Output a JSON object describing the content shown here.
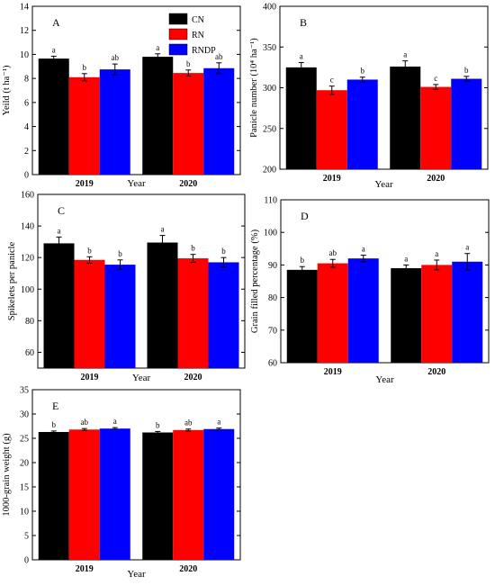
{
  "chart_data": [
    {
      "type": "bar",
      "panel_label": "A",
      "categories": [
        "2019",
        "2020"
      ],
      "xlabel": "Year",
      "ylabel": "Yeild (t ha⁻¹)",
      "ylim": [
        0,
        14
      ],
      "yticks": [
        0,
        2,
        4,
        6,
        8,
        10,
        12,
        14
      ],
      "series": [
        {
          "name": "CN",
          "values": [
            9.65,
            9.8
          ],
          "errors": [
            0.2,
            0.25
          ],
          "letters": [
            "a",
            "a"
          ]
        },
        {
          "name": "RN",
          "values": [
            8.1,
            8.45
          ],
          "errors": [
            0.3,
            0.25
          ],
          "letters": [
            "b",
            "b"
          ]
        },
        {
          "name": "RNDP",
          "values": [
            8.75,
            8.85
          ],
          "errors": [
            0.45,
            0.45
          ],
          "letters": [
            "ab",
            "ab"
          ]
        }
      ],
      "legend": "top-center"
    },
    {
      "type": "bar",
      "panel_label": "B",
      "categories": [
        "2019",
        "2020"
      ],
      "xlabel": "Year",
      "ylabel": "Panicle number (10⁴ ha⁻¹)",
      "ylim": [
        200,
        400
      ],
      "yticks": [
        200,
        250,
        300,
        350,
        400
      ],
      "series": [
        {
          "name": "CN",
          "values": [
            325,
            326
          ],
          "errors": [
            6,
            7
          ],
          "letters": [
            "a",
            "a"
          ]
        },
        {
          "name": "RN",
          "values": [
            297,
            301
          ],
          "errors": [
            5,
            3
          ],
          "letters": [
            "c",
            "c"
          ]
        },
        {
          "name": "RNDP",
          "values": [
            310,
            311
          ],
          "errors": [
            3,
            3
          ],
          "letters": [
            "b",
            "b"
          ]
        }
      ]
    },
    {
      "type": "bar",
      "panel_label": "C",
      "categories": [
        "2019",
        "2020"
      ],
      "xlabel": "Year",
      "ylabel": "Spikelets per panicle",
      "ylim": [
        50,
        160
      ],
      "yticks": [
        60,
        80,
        100,
        120,
        140,
        160
      ],
      "series": [
        {
          "name": "CN",
          "values": [
            129,
            129.5
          ],
          "errors": [
            4,
            4.5
          ],
          "letters": [
            "a",
            "a"
          ]
        },
        {
          "name": "RN",
          "values": [
            118.5,
            119.5
          ],
          "errors": [
            2,
            2.5
          ],
          "letters": [
            "b",
            "b"
          ]
        },
        {
          "name": "RNDP",
          "values": [
            115.5,
            117
          ],
          "errors": [
            3,
            3
          ],
          "letters": [
            "b",
            "b"
          ]
        }
      ]
    },
    {
      "type": "bar",
      "panel_label": "D",
      "categories": [
        "2019",
        "2020"
      ],
      "xlabel": "Year",
      "ylabel": "Grain filled percentage (%)",
      "ylim": [
        60,
        110
      ],
      "yticks": [
        60,
        70,
        80,
        90,
        100,
        110
      ],
      "series": [
        {
          "name": "CN",
          "values": [
            88.5,
            89
          ],
          "errors": [
            1,
            1
          ],
          "letters": [
            "b",
            "a"
          ]
        },
        {
          "name": "RN",
          "values": [
            90.5,
            90
          ],
          "errors": [
            1.2,
            1.5
          ],
          "letters": [
            "ab",
            "a"
          ]
        },
        {
          "name": "RNDP",
          "values": [
            92,
            91
          ],
          "errors": [
            1,
            2.5
          ],
          "letters": [
            "a",
            "a"
          ]
        }
      ]
    },
    {
      "type": "bar",
      "panel_label": "E",
      "categories": [
        "2019",
        "2020"
      ],
      "xlabel": "Year",
      "ylabel": "1000-grain weight (g)",
      "ylim": [
        0,
        35
      ],
      "yticks": [
        0,
        5,
        10,
        15,
        20,
        25,
        30,
        35
      ],
      "series": [
        {
          "name": "CN",
          "values": [
            26.3,
            26.2
          ],
          "errors": [
            0.2,
            0.2
          ],
          "letters": [
            "b",
            "b"
          ]
        },
        {
          "name": "RN",
          "values": [
            26.8,
            26.7
          ],
          "errors": [
            0.2,
            0.2
          ],
          "letters": [
            "ab",
            "ab"
          ]
        },
        {
          "name": "RNDP",
          "values": [
            27,
            26.9
          ],
          "errors": [
            0.2,
            0.2
          ],
          "letters": [
            "a",
            "a"
          ]
        }
      ]
    }
  ],
  "colors": {
    "CN": "#000000",
    "RN": "#ff0000",
    "RNDP": "#0000ff"
  }
}
